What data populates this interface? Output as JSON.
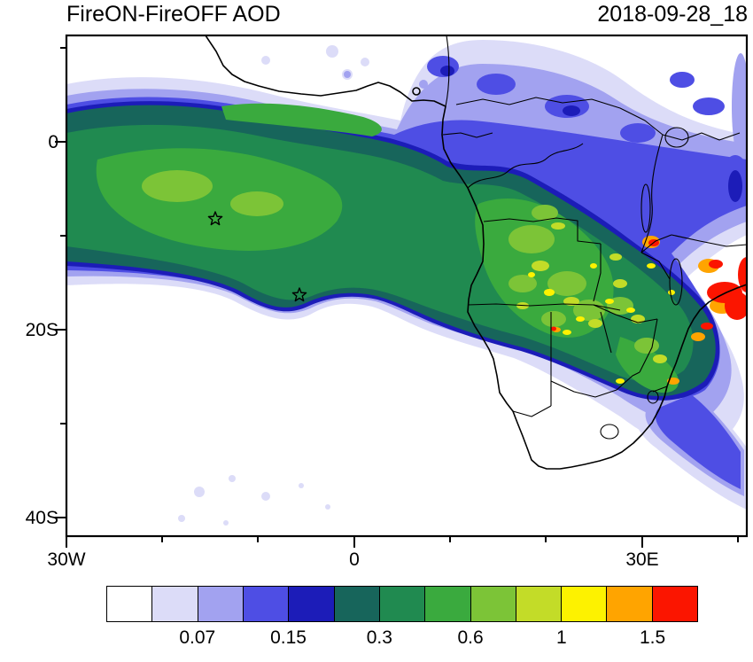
{
  "header": {
    "title": "FireON-FireOFF AOD",
    "date": "2018-09-28_18"
  },
  "axes": {
    "y_ticks": [
      {
        "label": "0"
      },
      {
        "label": "20S"
      },
      {
        "label": "40S"
      }
    ],
    "x_ticks": [
      {
        "label": "30W"
      },
      {
        "label": "0"
      },
      {
        "label": "30E"
      }
    ]
  },
  "colorbar": {
    "colors": [
      "#ffffff",
      "#dcdcf8",
      "#a2a2f0",
      "#4e4ee4",
      "#1c1cb8",
      "#17655b",
      "#208a50",
      "#3aaa3e",
      "#7cc437",
      "#c3dc28",
      "#fdf200",
      "#ffa400",
      "#fb1500"
    ],
    "tick_labels": [
      "0.07",
      "0.15",
      "0.3",
      "0.6",
      "1",
      "1.5"
    ],
    "labeled_boundaries": [
      2,
      4,
      6,
      8,
      10,
      12
    ],
    "n_cells": 13
  },
  "chart_data": {
    "type": "heatmap",
    "title": "FireON-FireOFF AOD",
    "timestamp": "2018-09-28_18",
    "extent": {
      "lon_min": -30,
      "lon_max": 41,
      "lat_min": -41,
      "lat_max": 11
    },
    "x_tick_labels": [
      "30W",
      "0",
      "30E"
    ],
    "y_tick_labels": [
      "0",
      "20S",
      "40S"
    ],
    "colorbar": {
      "labeled_levels": [
        0.07,
        0.15,
        0.3,
        0.6,
        1,
        1.5
      ],
      "n_cells": 13,
      "cell_colors": [
        "#ffffff",
        "#dcdcf8",
        "#a2a2f0",
        "#4e4ee4",
        "#1c1cb8",
        "#17655b",
        "#208a50",
        "#3aaa3e",
        "#7cc437",
        "#c3dc28",
        "#fdf200",
        "#ffa400",
        "#fb1500"
      ]
    },
    "markers": [
      {
        "type": "star",
        "lon": -14.4,
        "lat": -7.9
      },
      {
        "type": "star",
        "lon": -5.7,
        "lat": -15.9
      }
    ],
    "features": [
      {
        "name": "smoke-plume",
        "description": "Broad AOD enhancement (~0.15-0.8) over the South Atlantic between the equator and ~20S, stretching from 30W to the African coast and across central-southern Africa"
      },
      {
        "name": "land-maxima",
        "description": "Patches of AOD ~1 with peaks above 1.5 (red) near 30-40E, 10-18S over southeastern Africa"
      },
      {
        "name": "weak-halo",
        "description": "Light blue/lavender fringe (0.05-0.15) surrounding the plume, over East Africa and trailing southeast into the Indian Ocean"
      }
    ]
  }
}
